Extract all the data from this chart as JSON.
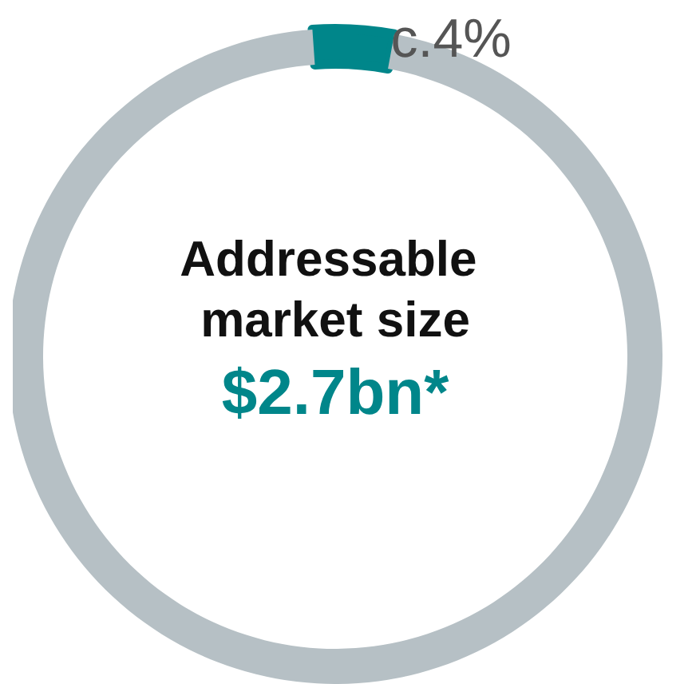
{
  "chart_data": {
    "type": "donut",
    "title": "Addressable market size",
    "annotations": [
      "$2.7bn*"
    ],
    "categories": [
      null,
      null
    ],
    "values": [
      4,
      96
    ],
    "colors": [
      "#00868a",
      "#b6c0c5"
    ],
    "value_labels": [
      "c.4%",
      null
    ]
  }
}
